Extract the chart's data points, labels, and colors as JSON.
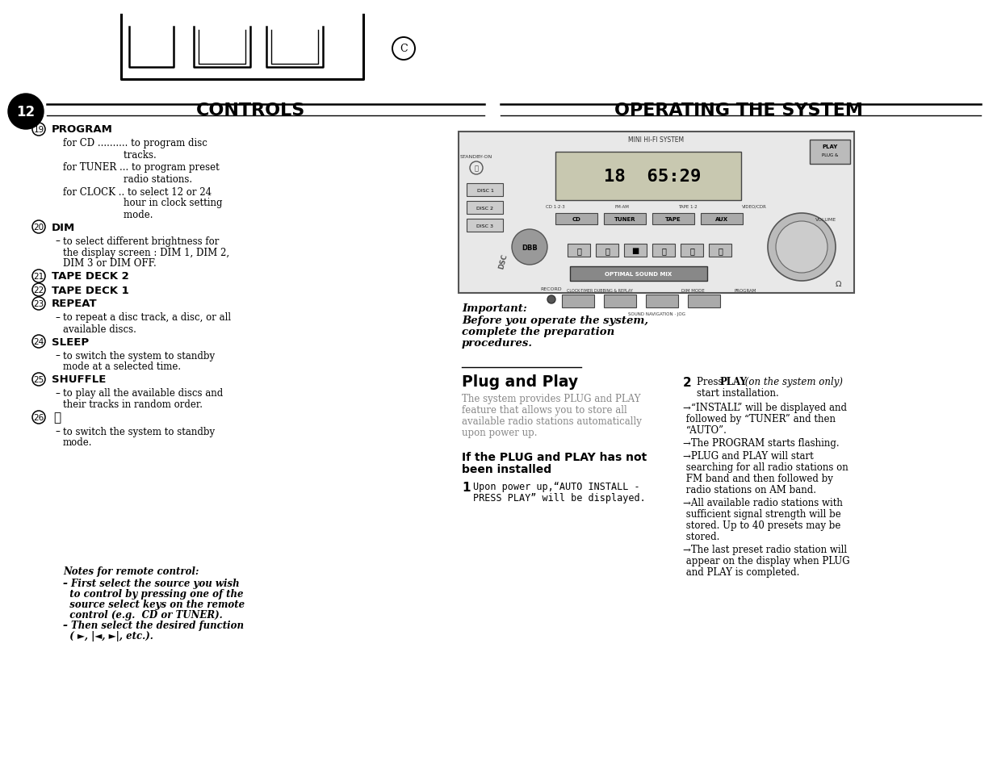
{
  "bg": "#ffffff",
  "header_left": "CONTROLS",
  "header_right": "OPERATING THE SYSTEM",
  "page_num": "12",
  "left_items": [
    {
      "type": "h",
      "num": "19",
      "bold": "PROGRAM"
    },
    {
      "type": "b",
      "lines": [
        "for CD .......... to program disc",
        "                    tracks."
      ]
    },
    {
      "type": "b",
      "lines": [
        "for TUNER ... to program preset",
        "                    radio stations."
      ]
    },
    {
      "type": "b",
      "lines": [
        "for CLOCK .. to select 12 or 24",
        "                    hour in clock setting",
        "                    mode."
      ]
    },
    {
      "type": "h",
      "num": "20",
      "bold": "DIM"
    },
    {
      "type": "d",
      "lines": [
        "to select different brightness for",
        "the display screen : DIM 1, DIM 2,",
        "DIM 3 or DIM OFF."
      ]
    },
    {
      "type": "h",
      "num": "21",
      "bold": "TAPE DECK 2"
    },
    {
      "type": "h",
      "num": "22",
      "bold": "TAPE DECK 1"
    },
    {
      "type": "h",
      "num": "23",
      "bold": "REPEAT"
    },
    {
      "type": "d",
      "lines": [
        "to repeat a disc track, a disc, or all",
        "available discs."
      ]
    },
    {
      "type": "h",
      "num": "24",
      "bold": "SLEEP"
    },
    {
      "type": "d",
      "lines": [
        "to switch the system to standby",
        "mode at a selected time."
      ]
    },
    {
      "type": "h",
      "num": "25",
      "bold": "SHUFFLE"
    },
    {
      "type": "d",
      "lines": [
        "to play all the available discs and",
        "their tracks in random order."
      ]
    },
    {
      "type": "hp",
      "num": "26"
    },
    {
      "type": "d",
      "lines": [
        "to switch the system to standby",
        "mode."
      ]
    }
  ],
  "notes_title": "Notes for remote control:",
  "notes": [
    "– First select the source you wish",
    "  to control by pressing one of the",
    "  source select keys on the remote",
    "  control (e.g.  CD or TUNER).",
    "– Then select the desired function",
    "  ( ►, |◄, ►|, etc.)."
  ],
  "important_label": "Important:",
  "important_body": [
    "Before you operate the system,",
    "complete the preparation",
    "procedures."
  ],
  "plug_title": "Plug and Play",
  "plug_body": [
    "The system provides PLUG and PLAY",
    "feature that allows you to store all",
    "available radio stations automatically",
    "upon power up."
  ],
  "if_title1": "If the PLUG and PLAY has not",
  "if_title2": "been installed",
  "s1_lines": [
    "Upon power up,“AUTO INSTALL -",
    "PRESS PLAY” will be displayed."
  ],
  "s2_bullets": [
    [
      "→“INSTALL” will be displayed and",
      " followed by “TUNER” and then",
      " “AUTO”."
    ],
    [
      "→The PROGRAM starts flashing."
    ],
    [
      "→PLUG and PLAY will start",
      " searching for all radio stations on",
      " FM band and then followed by",
      " radio stations on AM band."
    ],
    [
      "→All available radio stations with",
      " sufficient signal strength will be",
      " stored. Up to 40 presets may be",
      " stored."
    ],
    [
      "→The last preset radio station will",
      " appear on the display when PLUG",
      " and PLAY is completed."
    ]
  ]
}
